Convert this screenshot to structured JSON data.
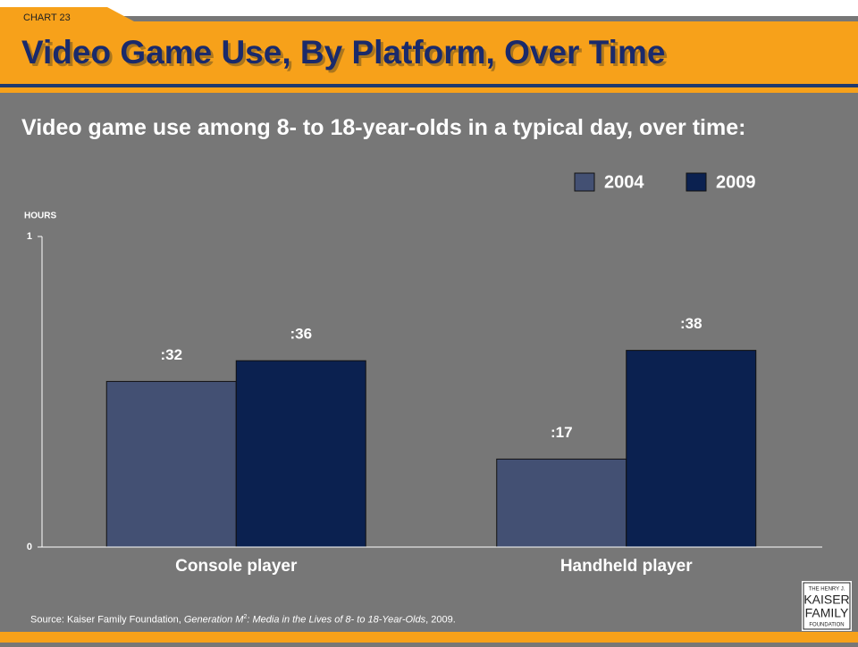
{
  "chart_data": {
    "type": "bar",
    "chart_label": "CHART 23",
    "title": "Video Game Use, By Platform, Over Time",
    "subtitle": "Video game use among 8- to 18-year-olds in a typical day, over time:",
    "y_axis_label": "HOURS",
    "categories": [
      "Console player",
      "Handheld player"
    ],
    "series": [
      {
        "name": "2004",
        "color": "#435073",
        "values": [
          0.5333,
          0.2833
        ],
        "value_labels": [
          ":32",
          ":17"
        ]
      },
      {
        "name": "2009",
        "color": "#0b2150",
        "values": [
          0.6,
          0.6333
        ],
        "value_labels": [
          ":36",
          ":38"
        ]
      }
    ],
    "ylim": [
      0,
      1
    ],
    "yticks": [
      0,
      1
    ],
    "grid": false,
    "legend": "top-right",
    "source": {
      "prefix": "Source: Kaiser Family Foundation, ",
      "italic": "Generation M",
      "sup": "2",
      "italic2": ": Media in the Lives of 8- to 18-Year-Olds",
      "suffix": ", 2009."
    },
    "logo": [
      "THE HENRY J.",
      "KAISER",
      "FAMILY",
      "FOUNDATION"
    ]
  }
}
